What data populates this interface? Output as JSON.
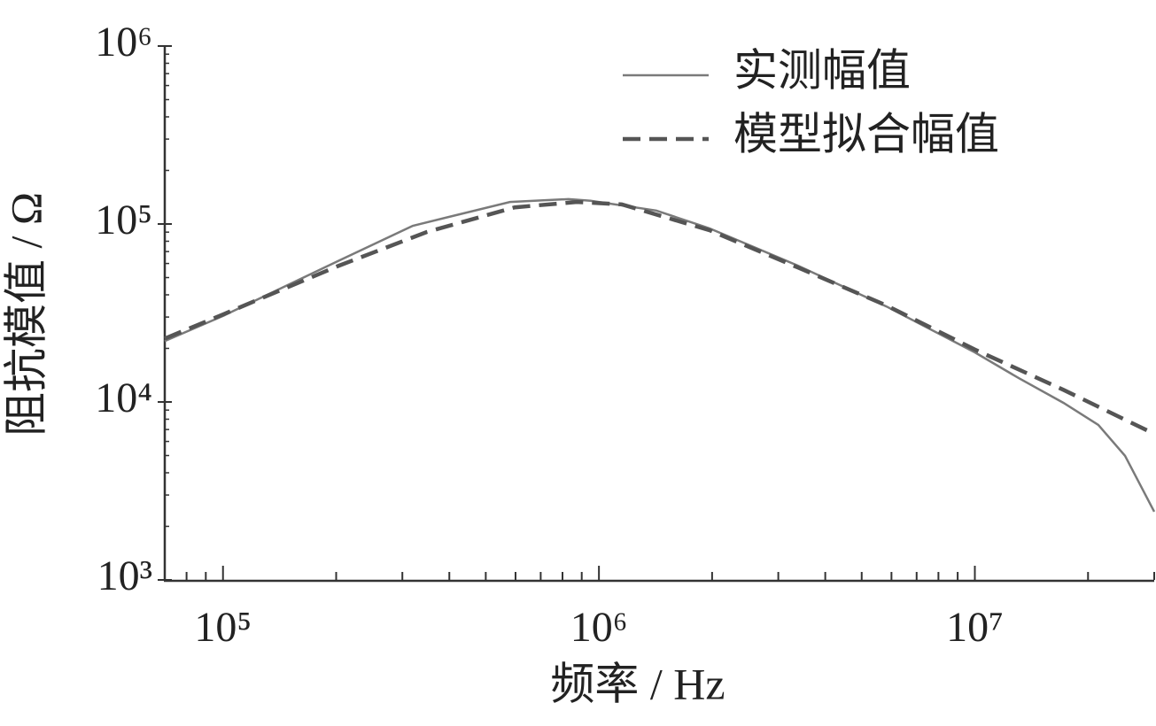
{
  "chart_data": {
    "type": "line",
    "x_label": "频率 / Hz",
    "y_label": "阻抗模值 / Ω",
    "log_x": true,
    "log_y": true,
    "xlim": [
      70000,
      30000000
    ],
    "ylim": [
      1000,
      1000000
    ],
    "xticks": [
      {
        "value": 100000,
        "label": "10⁵"
      },
      {
        "value": 1000000,
        "label": "10⁶"
      },
      {
        "value": 10000000,
        "label": "10⁷"
      }
    ],
    "xminorticks": [
      80000,
      90000,
      200000,
      300000,
      400000,
      500000,
      600000,
      700000,
      800000,
      900000,
      2000000,
      3000000,
      4000000,
      5000000,
      6000000,
      7000000,
      8000000,
      9000000,
      20000000,
      30000000
    ],
    "yticks": [
      {
        "value": 1000,
        "label": "10³"
      },
      {
        "value": 10000,
        "label": "10⁴"
      },
      {
        "value": 100000,
        "label": "10⁵"
      },
      {
        "value": 1000000,
        "label": "10⁶"
      }
    ],
    "yminorticks": [
      2000,
      3000,
      4000,
      5000,
      6000,
      7000,
      8000,
      9000,
      20000,
      30000,
      40000,
      50000,
      60000,
      70000,
      80000,
      90000,
      200000,
      300000,
      400000,
      500000,
      600000,
      700000,
      800000,
      900000
    ],
    "legend": "upper right",
    "series": [
      {
        "name": "实测幅值",
        "color": "#7a7a7a",
        "dash": false,
        "x": [
          70000,
          100000,
          202000,
          320000,
          580000,
          830000,
          950000,
          1420000,
          1970000,
          3380000,
          5820000,
          10000000,
          13100000,
          17200000,
          21300000,
          25100000,
          30000000
        ],
        "values": [
          22000,
          30400,
          61800,
          97700,
          133000,
          138000,
          135000,
          119000,
          94400,
          58400,
          34400,
          19000,
          13600,
          9890,
          7430,
          4980,
          2420
        ]
      },
      {
        "name": "模型拟合幅值",
        "color": "#555555",
        "dash": true,
        "x": [
          70000,
          100000,
          202000,
          348000,
          597000,
          873000,
          1150000,
          1970000,
          3380000,
          5820000,
          10000000,
          17200000,
          30000000
        ],
        "values": [
          22700,
          31000,
          58000,
          90100,
          124000,
          133000,
          129000,
          92200,
          57000,
          34800,
          19700,
          11700,
          6620
        ]
      }
    ]
  }
}
